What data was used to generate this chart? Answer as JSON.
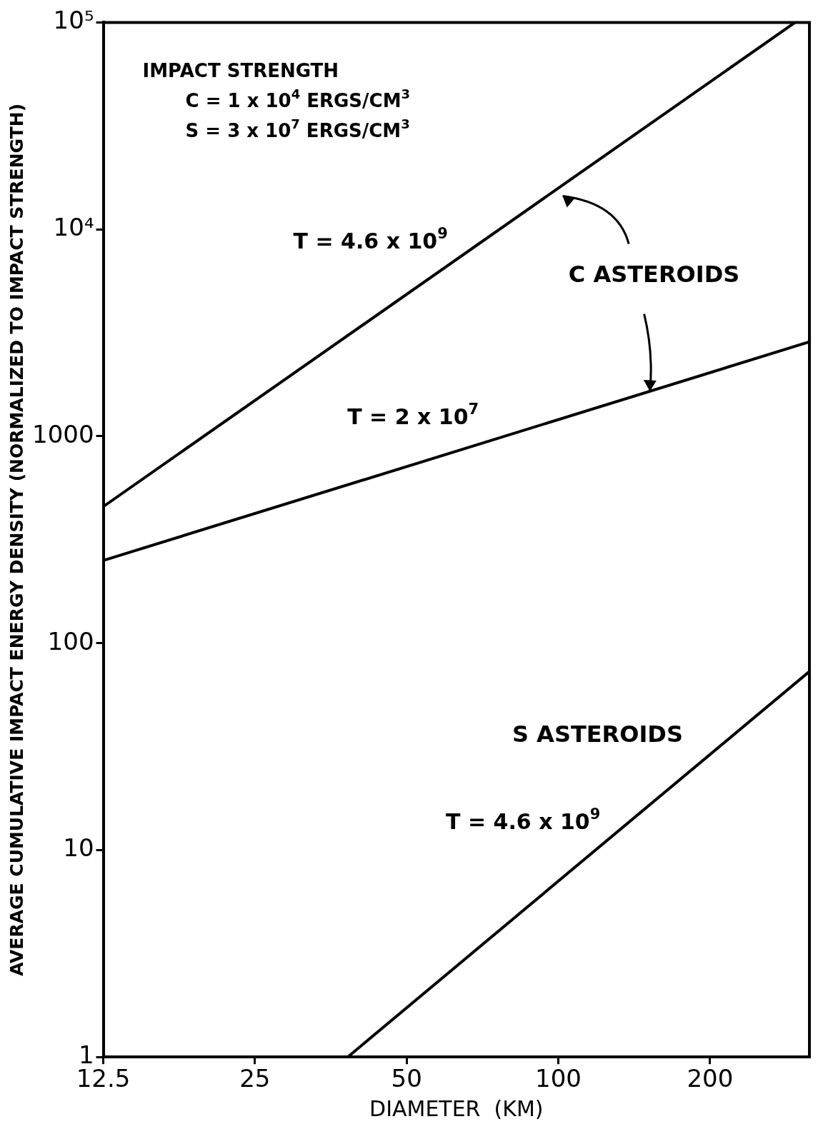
{
  "chart_data": {
    "type": "line",
    "xlabel": "DIAMETER  (KM)",
    "ylabel": "AVERAGE CUMULATIVE IMPACT ENERGY DENSITY (NORMALIZED TO IMPACT STRENGTH)",
    "log": "xy",
    "grid": false,
    "legend": false,
    "marker": "none",
    "line_style": "solid",
    "xlim": [
      12.5,
      315
    ],
    "xticks": [
      12.5,
      25,
      50,
      100,
      200
    ],
    "ylim": [
      1,
      100000
    ],
    "yticks": [
      {
        "value": 1,
        "label": "1"
      },
      {
        "value": 10,
        "label": "10"
      },
      {
        "value": 100,
        "label": "100"
      },
      {
        "value": 1000,
        "label": "1000"
      },
      {
        "value": 10000,
        "label": "10⁴"
      },
      {
        "value": 100000,
        "label": "10⁵"
      }
    ],
    "series": [
      {
        "name": "T = 4.6 x 10$^{9}$",
        "color": "#000000",
        "x": [
          12.5,
          295
        ],
        "values": [
          457,
          100000
        ]
      },
      {
        "name": "T = 2 x 10$^{7}$",
        "color": "#000000",
        "x": [
          12.5,
          315
        ],
        "values": [
          251,
          2860
        ]
      },
      {
        "name": "T = 4.6 x 10$^{9}$",
        "color": "#000000",
        "x": [
          38.2,
          315
        ],
        "values": [
          1,
          73
        ]
      }
    ],
    "annotations": [
      "IMPACT STRENGTH",
      "C = 1 x 10$^{4}$ ERGS/CM$^{3}$",
      "S = 3 x 10$^{7}$ ERGS/CM$^{3}$",
      {
        "text": "C ASTEROIDS",
        "x": 152,
        "y": 1650
      },
      "S ASTEROIDS"
    ]
  }
}
